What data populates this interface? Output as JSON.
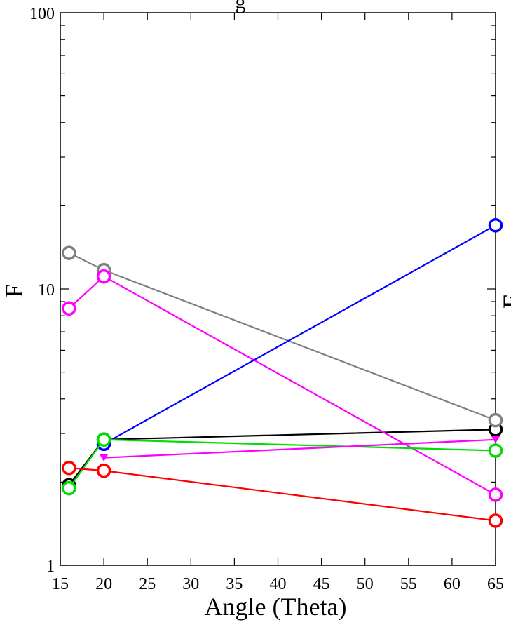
{
  "chart_data": {
    "type": "line",
    "title": "g",
    "xlabel": "Angle (Theta)",
    "ylabel": "F",
    "right_ylabel_fragment": "F",
    "x_ticks": [
      "15",
      "20",
      "25",
      "30",
      "35",
      "40",
      "45",
      "50",
      "55",
      "60",
      "65"
    ],
    "y_ticks": [
      "1",
      "10",
      "100"
    ],
    "xlim": [
      15,
      65
    ],
    "ylim": [
      1,
      100
    ],
    "y_scale": "log",
    "grid": false,
    "legend": "none",
    "series": [
      {
        "color": "#000000",
        "marker": "circle",
        "x": [
          16,
          20,
          65
        ],
        "y": [
          1.95,
          2.85,
          3.1
        ]
      },
      {
        "color": "#808080",
        "marker": "circle",
        "x": [
          16,
          20,
          65
        ],
        "y": [
          13.5,
          11.7,
          3.35
        ]
      },
      {
        "color": "#ff00ff",
        "marker": "circle",
        "x": [
          16,
          20,
          65
        ],
        "y": [
          8.5,
          11.1,
          1.8
        ]
      },
      {
        "color": "#0000ff",
        "marker": "circle",
        "x": [
          20,
          65
        ],
        "y": [
          2.75,
          17.0
        ]
      },
      {
        "color": "#00dd00",
        "marker": "circle",
        "x": [
          16,
          20,
          65
        ],
        "y": [
          1.9,
          2.85,
          2.6
        ]
      },
      {
        "color": "#ff00ff",
        "marker": "triangle-down",
        "x": [
          20,
          65
        ],
        "y": [
          2.45,
          2.85
        ]
      },
      {
        "color": "#ff0000",
        "marker": "circle",
        "x": [
          16,
          20,
          65
        ],
        "y": [
          2.25,
          2.2,
          1.45
        ]
      }
    ]
  }
}
